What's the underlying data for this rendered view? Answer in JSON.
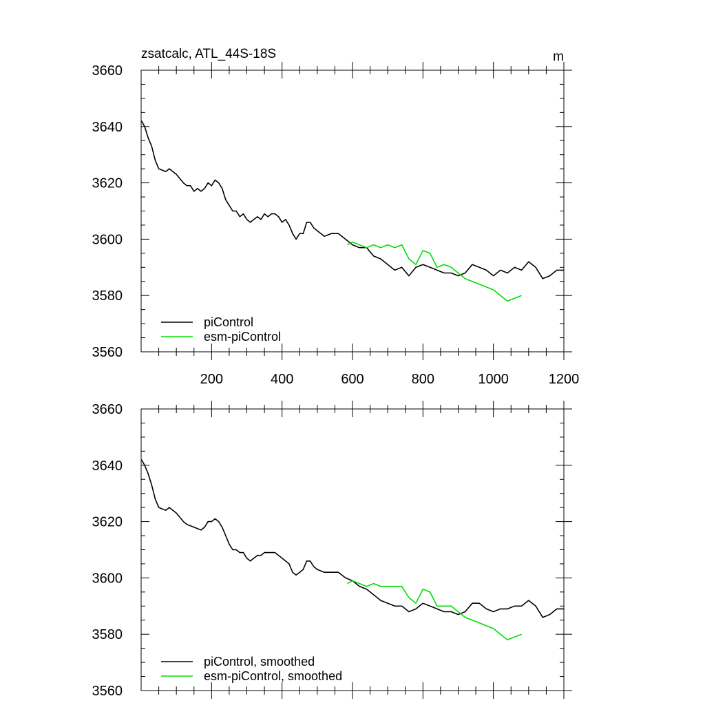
{
  "chart_data": [
    {
      "type": "line",
      "title": "zsatcalc, ATL_44S-18S",
      "units": "m",
      "xlim": [
        0,
        1200
      ],
      "ylim": [
        3560,
        3660
      ],
      "xticks": [
        200,
        400,
        600,
        800,
        1000,
        1200
      ],
      "yticks": [
        3560,
        3580,
        3600,
        3620,
        3640,
        3660
      ],
      "legend_position": "bottom-left",
      "series": [
        {
          "name": "piControl",
          "color": "#000000",
          "points": [
            [
              1,
              3642
            ],
            [
              10,
              3640
            ],
            [
              20,
              3636
            ],
            [
              30,
              3633
            ],
            [
              40,
              3628
            ],
            [
              50,
              3625
            ],
            [
              70,
              3624
            ],
            [
              80,
              3625
            ],
            [
              90,
              3624
            ],
            [
              100,
              3623
            ],
            [
              120,
              3620
            ],
            [
              130,
              3619
            ],
            [
              140,
              3619
            ],
            [
              150,
              3617
            ],
            [
              160,
              3618
            ],
            [
              170,
              3617
            ],
            [
              180,
              3618
            ],
            [
              190,
              3620
            ],
            [
              200,
              3619
            ],
            [
              210,
              3621
            ],
            [
              220,
              3620
            ],
            [
              230,
              3618
            ],
            [
              240,
              3614
            ],
            [
              250,
              3612
            ],
            [
              260,
              3610
            ],
            [
              270,
              3610
            ],
            [
              280,
              3608
            ],
            [
              290,
              3609
            ],
            [
              300,
              3607
            ],
            [
              310,
              3606
            ],
            [
              320,
              3607
            ],
            [
              330,
              3608
            ],
            [
              340,
              3607
            ],
            [
              350,
              3609
            ],
            [
              360,
              3608
            ],
            [
              370,
              3609
            ],
            [
              380,
              3609
            ],
            [
              390,
              3608
            ],
            [
              400,
              3606
            ],
            [
              410,
              3607
            ],
            [
              420,
              3605
            ],
            [
              430,
              3602
            ],
            [
              440,
              3600
            ],
            [
              450,
              3602
            ],
            [
              460,
              3602
            ],
            [
              470,
              3606
            ],
            [
              480,
              3606
            ],
            [
              490,
              3604
            ],
            [
              500,
              3603
            ],
            [
              520,
              3601
            ],
            [
              540,
              3602
            ],
            [
              560,
              3602
            ],
            [
              580,
              3600
            ],
            [
              600,
              3598
            ],
            [
              620,
              3597
            ],
            [
              640,
              3597
            ],
            [
              660,
              3594
            ],
            [
              680,
              3593
            ],
            [
              700,
              3591
            ],
            [
              720,
              3589
            ],
            [
              740,
              3590
            ],
            [
              760,
              3587
            ],
            [
              780,
              3590
            ],
            [
              800,
              3591
            ],
            [
              820,
              3590
            ],
            [
              840,
              3589
            ],
            [
              860,
              3588
            ],
            [
              880,
              3588
            ],
            [
              900,
              3587
            ],
            [
              920,
              3588
            ],
            [
              940,
              3591
            ],
            [
              960,
              3590
            ],
            [
              980,
              3589
            ],
            [
              1000,
              3587
            ],
            [
              1020,
              3589
            ],
            [
              1040,
              3588
            ],
            [
              1060,
              3590
            ],
            [
              1080,
              3589
            ],
            [
              1100,
              3592
            ],
            [
              1120,
              3590
            ],
            [
              1140,
              3586
            ],
            [
              1160,
              3587
            ],
            [
              1180,
              3589
            ],
            [
              1200,
              3589
            ]
          ]
        },
        {
          "name": "esm-piControl",
          "color": "#00dd00",
          "points": [
            [
              585,
              3598
            ],
            [
              600,
              3599
            ],
            [
              620,
              3598
            ],
            [
              640,
              3597
            ],
            [
              660,
              3598
            ],
            [
              680,
              3597
            ],
            [
              700,
              3598
            ],
            [
              720,
              3597
            ],
            [
              740,
              3598
            ],
            [
              760,
              3593
            ],
            [
              780,
              3591
            ],
            [
              800,
              3596
            ],
            [
              820,
              3595
            ],
            [
              840,
              3590
            ],
            [
              860,
              3591
            ],
            [
              880,
              3590
            ],
            [
              900,
              3588
            ],
            [
              920,
              3586
            ],
            [
              940,
              3585
            ],
            [
              960,
              3584
            ],
            [
              980,
              3583
            ],
            [
              1000,
              3582
            ],
            [
              1020,
              3580
            ],
            [
              1040,
              3578
            ],
            [
              1060,
              3579
            ],
            [
              1080,
              3580
            ]
          ]
        }
      ]
    },
    {
      "type": "line",
      "title": "",
      "units": "",
      "xlim": [
        0,
        1200
      ],
      "ylim": [
        3560,
        3660
      ],
      "yticks": [
        3560,
        3580,
        3600,
        3620,
        3640,
        3660
      ],
      "legend_position": "bottom-left",
      "series": [
        {
          "name": "piControl, smoothed",
          "color": "#000000",
          "points": [
            [
              1,
              3642
            ],
            [
              10,
              3640
            ],
            [
              20,
              3637
            ],
            [
              30,
              3633
            ],
            [
              40,
              3628
            ],
            [
              50,
              3625
            ],
            [
              70,
              3624
            ],
            [
              80,
              3625
            ],
            [
              90,
              3624
            ],
            [
              100,
              3623
            ],
            [
              120,
              3620
            ],
            [
              130,
              3619
            ],
            [
              150,
              3618
            ],
            [
              170,
              3617
            ],
            [
              180,
              3618
            ],
            [
              190,
              3620
            ],
            [
              200,
              3620
            ],
            [
              210,
              3621
            ],
            [
              220,
              3620
            ],
            [
              230,
              3618
            ],
            [
              240,
              3615
            ],
            [
              250,
              3612
            ],
            [
              260,
              3610
            ],
            [
              270,
              3610
            ],
            [
              280,
              3609
            ],
            [
              290,
              3609
            ],
            [
              300,
              3607
            ],
            [
              310,
              3606
            ],
            [
              320,
              3607
            ],
            [
              330,
              3608
            ],
            [
              340,
              3608
            ],
            [
              350,
              3609
            ],
            [
              360,
              3609
            ],
            [
              370,
              3609
            ],
            [
              380,
              3609
            ],
            [
              390,
              3608
            ],
            [
              400,
              3607
            ],
            [
              410,
              3606
            ],
            [
              420,
              3605
            ],
            [
              430,
              3602
            ],
            [
              440,
              3601
            ],
            [
              450,
              3602
            ],
            [
              460,
              3603
            ],
            [
              470,
              3606
            ],
            [
              480,
              3606
            ],
            [
              490,
              3604
            ],
            [
              500,
              3603
            ],
            [
              520,
              3602
            ],
            [
              540,
              3602
            ],
            [
              560,
              3602
            ],
            [
              580,
              3600
            ],
            [
              600,
              3599
            ],
            [
              620,
              3597
            ],
            [
              640,
              3596
            ],
            [
              660,
              3594
            ],
            [
              680,
              3592
            ],
            [
              700,
              3591
            ],
            [
              720,
              3590
            ],
            [
              740,
              3590
            ],
            [
              760,
              3588
            ],
            [
              780,
              3589
            ],
            [
              800,
              3591
            ],
            [
              820,
              3590
            ],
            [
              840,
              3589
            ],
            [
              860,
              3588
            ],
            [
              880,
              3588
            ],
            [
              900,
              3587
            ],
            [
              920,
              3588
            ],
            [
              940,
              3591
            ],
            [
              960,
              3591
            ],
            [
              980,
              3589
            ],
            [
              1000,
              3588
            ],
            [
              1020,
              3589
            ],
            [
              1040,
              3589
            ],
            [
              1060,
              3590
            ],
            [
              1080,
              3590
            ],
            [
              1100,
              3592
            ],
            [
              1120,
              3590
            ],
            [
              1140,
              3586
            ],
            [
              1160,
              3587
            ],
            [
              1180,
              3589
            ],
            [
              1200,
              3589
            ]
          ]
        },
        {
          "name": "esm-piControl, smoothed",
          "color": "#00dd00",
          "points": [
            [
              585,
              3598
            ],
            [
              600,
              3599
            ],
            [
              620,
              3598
            ],
            [
              640,
              3597
            ],
            [
              660,
              3598
            ],
            [
              680,
              3597
            ],
            [
              700,
              3597
            ],
            [
              720,
              3597
            ],
            [
              740,
              3597
            ],
            [
              760,
              3593
            ],
            [
              780,
              3591
            ],
            [
              800,
              3596
            ],
            [
              820,
              3595
            ],
            [
              840,
              3590
            ],
            [
              860,
              3590
            ],
            [
              880,
              3590
            ],
            [
              900,
              3588
            ],
            [
              920,
              3586
            ],
            [
              940,
              3585
            ],
            [
              960,
              3584
            ],
            [
              980,
              3583
            ],
            [
              1000,
              3582
            ],
            [
              1020,
              3580
            ],
            [
              1040,
              3578
            ],
            [
              1060,
              3579
            ],
            [
              1080,
              3580
            ]
          ]
        }
      ]
    }
  ]
}
